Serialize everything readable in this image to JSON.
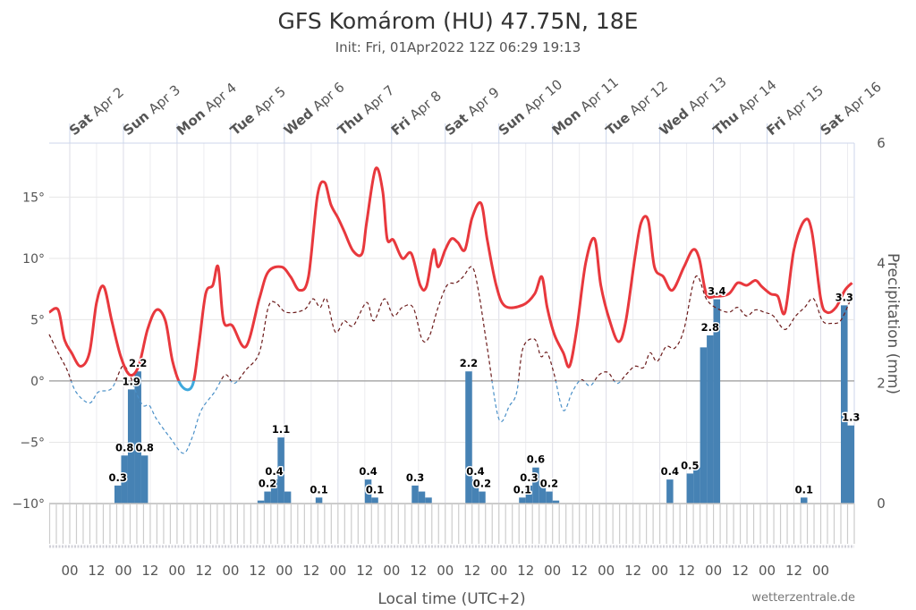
{
  "title": "GFS Komárom (HU) 47.75N, 18E",
  "subtitle": "Init: Fri, 01Apr2022 12Z 06:29 19:13",
  "credit": "wetterzentrale.de",
  "chart_data": {
    "type": "line+bar",
    "title": "GFS Komárom (HU) 47.75N, 18E",
    "subtitle": "Init: Fri, 01Apr2022 12Z 06:29 19:13",
    "xlabel": "Local time (UTC+2)",
    "ylabel_right": "Precipitation (mm)",
    "x_unit": "hours since Sat Apr 2 00:00 local",
    "xlim": [
      -9.2,
      351
    ],
    "ylim_left": [
      -10,
      19.4
    ],
    "ylim_right": [
      0,
      6
    ],
    "left_ticks": [
      {
        "v": 15,
        "label": "15°"
      },
      {
        "v": 10,
        "label": "10°"
      },
      {
        "v": 5,
        "label": "5°"
      },
      {
        "v": 0,
        "label": "0°"
      },
      {
        "v": -5,
        "label": "−5°"
      },
      {
        "v": -10,
        "label": "−10°"
      }
    ],
    "right_ticks": [
      {
        "v": 6,
        "label": "6"
      },
      {
        "v": 4,
        "label": "4"
      },
      {
        "v": 2,
        "label": "2"
      },
      {
        "v": 0,
        "label": "0"
      }
    ],
    "days": [
      {
        "dow": "Sat",
        "date": "Apr 2"
      },
      {
        "dow": "Sun",
        "date": "Apr 3"
      },
      {
        "dow": "Mon",
        "date": "Apr 4"
      },
      {
        "dow": "Tue",
        "date": "Apr 5"
      },
      {
        "dow": "Wed",
        "date": "Apr 6"
      },
      {
        "dow": "Thu",
        "date": "Apr 7"
      },
      {
        "dow": "Fri",
        "date": "Apr 8"
      },
      {
        "dow": "Sat",
        "date": "Apr 9"
      },
      {
        "dow": "Sun",
        "date": "Apr 10"
      },
      {
        "dow": "Mon",
        "date": "Apr 11"
      },
      {
        "dow": "Tue",
        "date": "Apr 12"
      },
      {
        "dow": "Wed",
        "date": "Apr 13"
      },
      {
        "dow": "Thu",
        "date": "Apr 14"
      },
      {
        "dow": "Fri",
        "date": "Apr 15"
      },
      {
        "dow": "Sat",
        "date": "Apr 16"
      }
    ],
    "hour_labels": [
      "00",
      "12"
    ],
    "colors": {
      "temp_warm": "#e8383d",
      "temp_cold": "#3fa9dd",
      "dew_warm": "#6b1a1a",
      "dew_cold": "#4a90c8",
      "bar": "#4682b4"
    },
    "series": [
      {
        "name": "Temperature",
        "style": "solid",
        "points": [
          [
            -9.2,
            5.6
          ],
          [
            -5.2,
            5.8
          ],
          [
            -2.4,
            3.4
          ],
          [
            0.8,
            2.3
          ],
          [
            4.8,
            1.2
          ],
          [
            8.8,
            2.3
          ],
          [
            12,
            6.4
          ],
          [
            15.2,
            7.7
          ],
          [
            18.8,
            4.9
          ],
          [
            22.8,
            2.0
          ],
          [
            26.8,
            0.5
          ],
          [
            30.8,
            1.2
          ],
          [
            34.8,
            4.2
          ],
          [
            38.8,
            5.8
          ],
          [
            42.8,
            4.9
          ],
          [
            46,
            1.6
          ],
          [
            50,
            -0.4
          ],
          [
            54.8,
            -0.4
          ],
          [
            57.6,
            2.7
          ],
          [
            60.8,
            7.1
          ],
          [
            64,
            7.8
          ],
          [
            66.4,
            9.3
          ],
          [
            68.8,
            4.9
          ],
          [
            72.8,
            4.5
          ],
          [
            78.8,
            2.8
          ],
          [
            84.8,
            6.7
          ],
          [
            88.8,
            8.9
          ],
          [
            94.8,
            9.3
          ],
          [
            98.8,
            8.5
          ],
          [
            102.8,
            7.4
          ],
          [
            106.8,
            8.5
          ],
          [
            110.8,
            15.1
          ],
          [
            114,
            16.2
          ],
          [
            116.8,
            14.4
          ],
          [
            120,
            13.3
          ],
          [
            122.8,
            12.2
          ],
          [
            126.8,
            10.6
          ],
          [
            130.8,
            10.4
          ],
          [
            132.8,
            12.9
          ],
          [
            136.8,
            17.3
          ],
          [
            140,
            15.5
          ],
          [
            142,
            11.6
          ],
          [
            144.8,
            11.5
          ],
          [
            148.8,
            10
          ],
          [
            152.8,
            10.4
          ],
          [
            156.8,
            7.8
          ],
          [
            159.6,
            7.7
          ],
          [
            162.8,
            10.7
          ],
          [
            164.8,
            9.3
          ],
          [
            168,
            10.7
          ],
          [
            170.8,
            11.6
          ],
          [
            173.6,
            11.3
          ],
          [
            176.8,
            10.7
          ],
          [
            180,
            13.3
          ],
          [
            184,
            14.5
          ],
          [
            186.8,
            11.5
          ],
          [
            190.8,
            7.8
          ],
          [
            194.8,
            6.1
          ],
          [
            202.8,
            6.2
          ],
          [
            208,
            7.1
          ],
          [
            211.2,
            8.5
          ],
          [
            213.6,
            6
          ],
          [
            216.8,
            3.8
          ],
          [
            220.8,
            2.3
          ],
          [
            223.6,
            1.2
          ],
          [
            226.8,
            4.2
          ],
          [
            230.8,
            9.6
          ],
          [
            234.8,
            11.6
          ],
          [
            237.6,
            7.8
          ],
          [
            241.6,
            4.9
          ],
          [
            245.6,
            3.2
          ],
          [
            248.8,
            4.9
          ],
          [
            252.8,
            10
          ],
          [
            255.6,
            12.9
          ],
          [
            258.8,
            13.1
          ],
          [
            261.6,
            9.3
          ],
          [
            265.6,
            8.5
          ],
          [
            269.6,
            7.4
          ],
          [
            274.8,
            9.3
          ],
          [
            278.8,
            10.7
          ],
          [
            281.6,
            10
          ],
          [
            284.8,
            7.1
          ],
          [
            288.8,
            6.9
          ],
          [
            294.8,
            7.1
          ],
          [
            298.8,
            8
          ],
          [
            302.8,
            7.8
          ],
          [
            306.8,
            8.2
          ],
          [
            309.6,
            7.7
          ],
          [
            313.6,
            7.1
          ],
          [
            316.8,
            6.9
          ],
          [
            320,
            5.6
          ],
          [
            324,
            10.7
          ],
          [
            328.8,
            13.1
          ],
          [
            332,
            12.2
          ],
          [
            336,
            6.7
          ],
          [
            338.8,
            5.6
          ],
          [
            342.8,
            6
          ],
          [
            346.8,
            7.4
          ],
          [
            350,
            8
          ]
        ]
      },
      {
        "name": "Dew point",
        "style": "dashed",
        "points": [
          [
            -9.2,
            3.8
          ],
          [
            -5.2,
            2.3
          ],
          [
            -1.2,
            0.9
          ],
          [
            2.8,
            -0.9
          ],
          [
            8.8,
            -1.8
          ],
          [
            12.8,
            -0.9
          ],
          [
            18.8,
            -0.6
          ],
          [
            23.6,
            1.2
          ],
          [
            26.8,
            0.5
          ],
          [
            29.6,
            -0.9
          ],
          [
            32.8,
            -2
          ],
          [
            35.6,
            -2
          ],
          [
            38.8,
            -3.1
          ],
          [
            44.8,
            -4.6
          ],
          [
            50.8,
            -5.9
          ],
          [
            54.8,
            -4.6
          ],
          [
            58.8,
            -2.4
          ],
          [
            64.8,
            -0.9
          ],
          [
            69.6,
            0.5
          ],
          [
            73.6,
            -0.2
          ],
          [
            78.8,
            0.9
          ],
          [
            84.8,
            2.3
          ],
          [
            88.8,
            6
          ],
          [
            92,
            6.4
          ],
          [
            96.8,
            5.6
          ],
          [
            104.8,
            5.8
          ],
          [
            108.8,
            6.7
          ],
          [
            112,
            6
          ],
          [
            114.8,
            6.7
          ],
          [
            118.8,
            4
          ],
          [
            122.8,
            4.9
          ],
          [
            126.8,
            4.5
          ],
          [
            132.8,
            6.4
          ],
          [
            136,
            4.9
          ],
          [
            140.8,
            6.7
          ],
          [
            144.8,
            5.3
          ],
          [
            148.8,
            6
          ],
          [
            153.6,
            6
          ],
          [
            157.6,
            3.4
          ],
          [
            160.8,
            3.6
          ],
          [
            164.8,
            6
          ],
          [
            168.8,
            7.8
          ],
          [
            172.8,
            8
          ],
          [
            176,
            8.5
          ],
          [
            180,
            9.3
          ],
          [
            182.8,
            7.4
          ],
          [
            186.8,
            2.7
          ],
          [
            192,
            -3.1
          ],
          [
            196.8,
            -2
          ],
          [
            200,
            -0.9
          ],
          [
            202.8,
            2.7
          ],
          [
            208,
            3.4
          ],
          [
            210.8,
            2
          ],
          [
            213.6,
            2.3
          ],
          [
            216.8,
            0.5
          ],
          [
            220.8,
            -2.4
          ],
          [
            224.8,
            -0.9
          ],
          [
            228.8,
            0.1
          ],
          [
            232.8,
            -0.4
          ],
          [
            236.8,
            0.5
          ],
          [
            240.8,
            0.7
          ],
          [
            244.8,
            -0.2
          ],
          [
            248.8,
            0.5
          ],
          [
            252.8,
            1.2
          ],
          [
            256.8,
            1.1
          ],
          [
            259.6,
            2.3
          ],
          [
            262.8,
            1.6
          ],
          [
            266.8,
            2.8
          ],
          [
            270.8,
            2.7
          ],
          [
            274.8,
            4.2
          ],
          [
            280,
            8.5
          ],
          [
            284.8,
            6.7
          ],
          [
            288.8,
            6
          ],
          [
            294.8,
            5.6
          ],
          [
            298.8,
            6
          ],
          [
            302.8,
            5.3
          ],
          [
            306.8,
            5.8
          ],
          [
            310.8,
            5.6
          ],
          [
            314.8,
            5.3
          ],
          [
            320,
            4.2
          ],
          [
            324.8,
            5.3
          ],
          [
            328.8,
            6
          ],
          [
            332.8,
            6.7
          ],
          [
            336.8,
            4.9
          ],
          [
            340.8,
            4.7
          ],
          [
            344.8,
            4.9
          ],
          [
            348.8,
            6.4
          ]
        ]
      },
      {
        "name": "Precipitation (mm / 3h)",
        "style": "bar",
        "bin_hours": 3,
        "bars": [
          [
            20,
            0.3,
            "0.3"
          ],
          [
            23,
            0.8,
            "0.8"
          ],
          [
            26,
            1.9,
            "1.9"
          ],
          [
            29,
            2.2,
            "2.2"
          ],
          [
            32,
            0.8,
            "0.8"
          ],
          [
            84,
            0.05,
            null
          ],
          [
            87,
            0.2,
            "0.2"
          ],
          [
            90,
            0.4,
            "0.4"
          ],
          [
            93,
            1.1,
            "1.1"
          ],
          [
            96,
            0.2,
            null
          ],
          [
            110,
            0.1,
            "0.1"
          ],
          [
            132,
            0.4,
            "0.4"
          ],
          [
            135,
            0.1,
            "0.1"
          ],
          [
            153,
            0.3,
            "0.3"
          ],
          [
            156,
            0.2,
            null
          ],
          [
            159,
            0.1,
            null
          ],
          [
            177,
            2.2,
            "2.2"
          ],
          [
            180,
            0.4,
            "0.4"
          ],
          [
            183,
            0.2,
            "0.2"
          ],
          [
            201,
            0.1,
            "0.1"
          ],
          [
            204,
            0.3,
            "0.3"
          ],
          [
            207,
            0.6,
            "0.6"
          ],
          [
            210,
            0.3,
            null
          ],
          [
            213,
            0.2,
            "0.2"
          ],
          [
            216,
            0.05,
            null
          ],
          [
            267,
            0.4,
            "0.4"
          ],
          [
            276,
            0.5,
            "0.5"
          ],
          [
            279,
            0.6,
            null
          ],
          [
            282,
            2.6,
            null
          ],
          [
            285,
            2.8,
            "2.8"
          ],
          [
            288,
            3.4,
            "3.4"
          ],
          [
            327,
            0.1,
            "0.1"
          ],
          [
            345,
            3.3,
            "3.3"
          ],
          [
            348,
            1.3,
            "1.3"
          ]
        ]
      }
    ]
  }
}
